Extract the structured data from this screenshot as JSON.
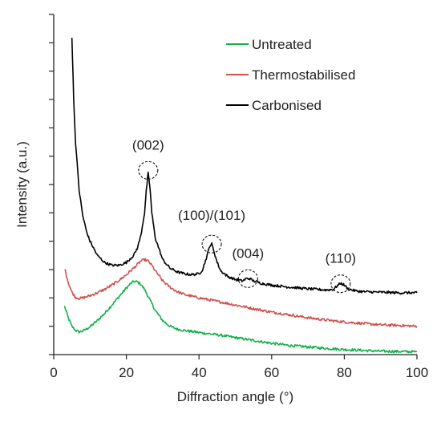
{
  "chart_data": {
    "type": "line",
    "title": "",
    "xlabel": "Diffraction angle (°)",
    "ylabel": "Intensity (a.u.)",
    "xlim": [
      0,
      100
    ],
    "xticks": [
      0,
      20,
      40,
      60,
      80,
      100
    ],
    "xtick_labels": [
      "0",
      "20",
      "40",
      "60",
      "80",
      "100"
    ],
    "yticks_shown": false,
    "grid": false,
    "legend": "top-right",
    "series": [
      {
        "name": "Untreated",
        "color": "#12b04a",
        "x": [
          3,
          4,
          5,
          6,
          7,
          8,
          10,
          12,
          14,
          16,
          18,
          20,
          21,
          22,
          23,
          24,
          25,
          26,
          27,
          28,
          30,
          32,
          34,
          36,
          40,
          45,
          50,
          55,
          60,
          65,
          70,
          75,
          80,
          85,
          90,
          95,
          100
        ],
        "y": [
          1.7,
          1.3,
          1.0,
          0.85,
          0.8,
          0.83,
          0.98,
          1.2,
          1.45,
          1.75,
          2.05,
          2.35,
          2.48,
          2.58,
          2.57,
          2.48,
          2.3,
          2.05,
          1.8,
          1.55,
          1.2,
          1.0,
          0.9,
          0.85,
          0.78,
          0.7,
          0.6,
          0.5,
          0.4,
          0.32,
          0.27,
          0.22,
          0.18,
          0.15,
          0.12,
          0.11,
          0.1
        ]
      },
      {
        "name": "Thermostabilised",
        "color": "#d0504c",
        "x": [
          3,
          4,
          5,
          6,
          7,
          8,
          10,
          12,
          14,
          16,
          18,
          20,
          22,
          24,
          25,
          26,
          27,
          28,
          30,
          32,
          34,
          36,
          40,
          45,
          50,
          55,
          60,
          65,
          70,
          75,
          80,
          85,
          90,
          95,
          100
        ],
        "y": [
          3.05,
          2.55,
          2.2,
          2.02,
          1.98,
          2.0,
          2.08,
          2.18,
          2.3,
          2.45,
          2.62,
          2.82,
          3.05,
          3.3,
          3.35,
          3.3,
          3.15,
          2.95,
          2.6,
          2.38,
          2.22,
          2.12,
          2.0,
          1.88,
          1.75,
          1.62,
          1.5,
          1.4,
          1.3,
          1.22,
          1.15,
          1.1,
          1.05,
          1.03,
          1.0
        ]
      },
      {
        "name": "Carbonised",
        "color": "#000000",
        "x": [
          5,
          5.5,
          6,
          7,
          8,
          9,
          10,
          12,
          14,
          16,
          18,
          20,
          22,
          23,
          24,
          25,
          25.5,
          26,
          26.5,
          27,
          28,
          30,
          32,
          34,
          36,
          38,
          40,
          41,
          42,
          43,
          43.5,
          44,
          45,
          46,
          48,
          50,
          52,
          53,
          54,
          55,
          57,
          60,
          65,
          70,
          75,
          77,
          78,
          79,
          80,
          81,
          83,
          85,
          90,
          95,
          100
        ],
        "y": [
          11.2,
          9.0,
          7.5,
          5.8,
          4.9,
          4.35,
          4.0,
          3.5,
          3.25,
          3.15,
          3.15,
          3.25,
          3.5,
          3.75,
          4.2,
          5.0,
          5.8,
          6.4,
          5.9,
          5.0,
          4.1,
          3.35,
          3.05,
          2.92,
          2.85,
          2.82,
          2.85,
          3.0,
          3.4,
          3.85,
          3.9,
          3.7,
          3.25,
          2.95,
          2.75,
          2.65,
          2.6,
          2.68,
          2.68,
          2.6,
          2.52,
          2.45,
          2.38,
          2.32,
          2.28,
          2.3,
          2.42,
          2.52,
          2.45,
          2.32,
          2.25,
          2.22,
          2.2,
          2.18,
          2.18
        ]
      }
    ],
    "annotations": [
      {
        "text": "(002)",
        "x": 26.0,
        "y": 6.5
      },
      {
        "text": "(100)/(101)",
        "x": 43.5,
        "y": 3.9
      },
      {
        "text": "(004)",
        "x": 53.5,
        "y": 2.68
      },
      {
        "text": "(110)",
        "x": 79.0,
        "y": 2.5
      }
    ]
  }
}
